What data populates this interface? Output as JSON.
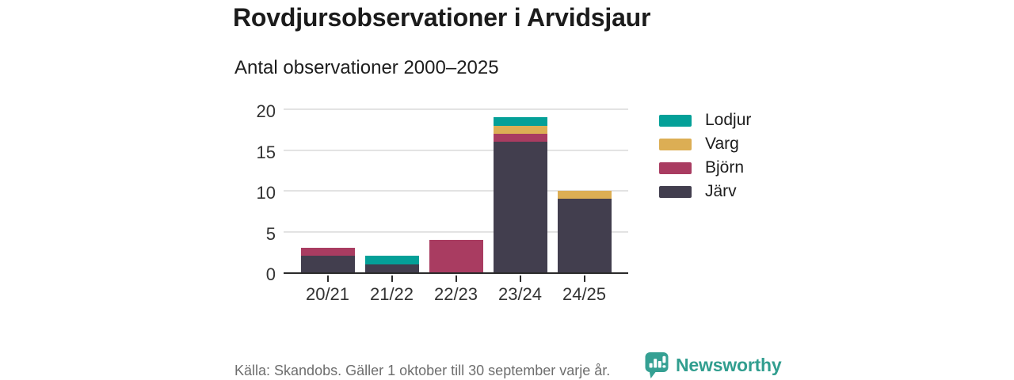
{
  "header": {
    "title": "Rovdjursobservationer i Arvidsjaur",
    "subtitle": "Antal observationer 2000–2025"
  },
  "chart_data": {
    "type": "bar",
    "stacked": true,
    "title": "Rovdjursobservationer i Arvidsjaur",
    "subtitle": "Antal observationer 2000–2025",
    "categories": [
      "20/21",
      "21/22",
      "22/23",
      "23/24",
      "24/25"
    ],
    "series": [
      {
        "name": "Lodjur",
        "color": "#04a098",
        "values": [
          0,
          1,
          0,
          1,
          0
        ]
      },
      {
        "name": "Varg",
        "color": "#dcae54",
        "values": [
          0,
          0,
          0,
          1,
          1
        ]
      },
      {
        "name": "Björn",
        "color": "#a93c61",
        "values": [
          1,
          0,
          4,
          1,
          0
        ]
      },
      {
        "name": "Järv",
        "color": "#423e4e",
        "values": [
          2,
          1,
          0,
          16,
          9
        ]
      }
    ],
    "totals": [
      3,
      2,
      4,
      19,
      10
    ],
    "stack_order_bottom_to_top": [
      "Järv",
      "Björn",
      "Varg",
      "Lodjur"
    ],
    "xlabel": "",
    "ylabel": "",
    "yticks": [
      0,
      5,
      10,
      15,
      20
    ],
    "ylim": [
      0,
      20
    ],
    "grid": true,
    "legend_position": "right",
    "axis_color": "#2b2b2b",
    "gridline_color": "#e3e3e3",
    "tick_label_color": "#333333"
  },
  "footer": {
    "source": "Källa: Skandobs. Gäller 1 oktober till 30 september varje år.",
    "brand": "Newsworthy",
    "brand_color": "#319e8f",
    "brand_icon": "newsworthy-speech-bubble-barchart-icon"
  }
}
